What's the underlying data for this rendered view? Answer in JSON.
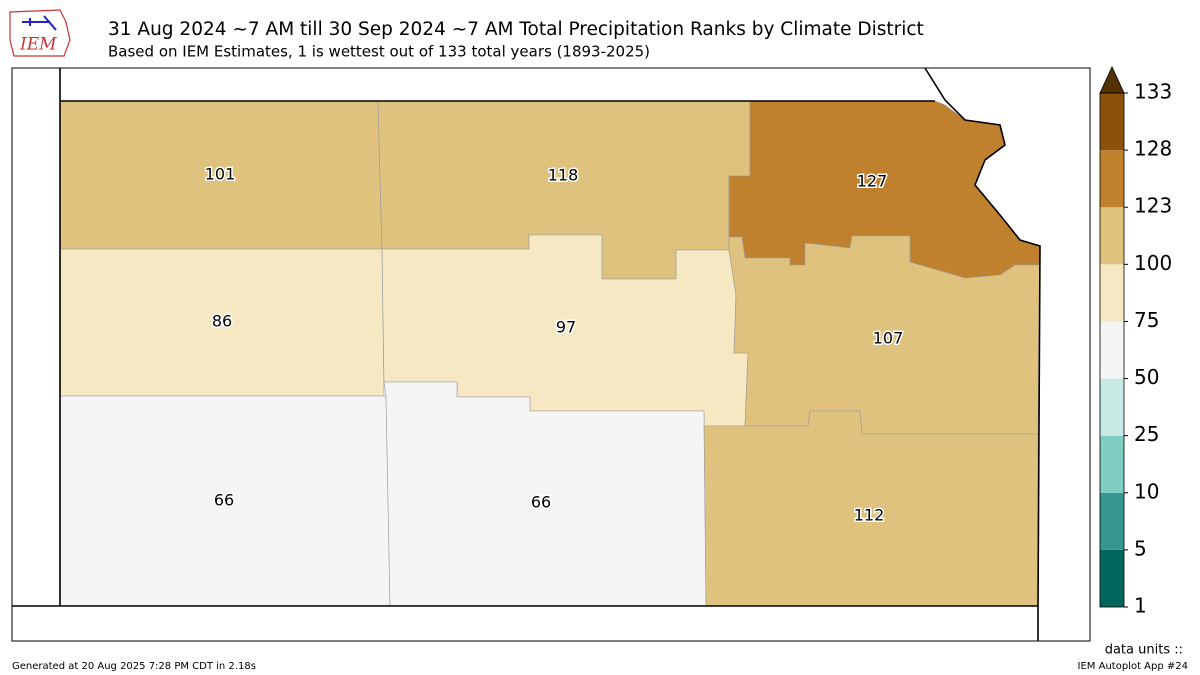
{
  "header": {
    "title": "31 Aug 2024 ~7 AM till 30 Sep 2024 ~7 AM Total Precipitation Ranks by Climate District",
    "subtitle": "Based on IEM Estimates, 1 is wettest out of 133 total years (1893-2025)",
    "logo": "IEM"
  },
  "district_ranks": [
    101,
    118,
    127,
    86,
    97,
    107,
    66,
    66,
    112
  ],
  "colorbar": {
    "ticks": [
      1,
      5,
      10,
      25,
      50,
      75,
      100,
      123,
      128,
      133
    ],
    "colors": [
      "#01665e",
      "#35978f",
      "#80cdc1",
      "#c7eae5",
      "#f5f5f5",
      "#f6e8c3",
      "#dfc27d",
      "#bf812d",
      "#8c510a"
    ],
    "extend_color": "#543005",
    "units_label": "data units ::"
  },
  "footer": {
    "generated": "Generated at 20 Aug 2025 7:28 PM CDT in 2.18s",
    "app": "IEM Autoplot App #24"
  }
}
